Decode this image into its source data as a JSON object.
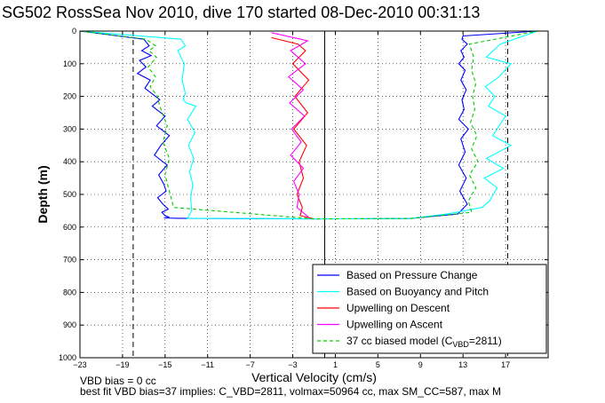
{
  "title": "SG502 RossSea Nov 2010, dive 170 started 08-Dec-2010 00:31:13",
  "footer": {
    "line1": "VBD bias = 0 cc",
    "line2": "best fit VBD bias=37 implies: C_VBD=2811, volmax=50964 cc, max SM_CC=587, max M"
  },
  "chart_data": {
    "type": "line",
    "xlabel": "Vertical Velocity (cm/s)",
    "ylabel": "Depth (m)",
    "xlim": [
      -23,
      21
    ],
    "ylim": [
      0,
      1000
    ],
    "y_reversed": true,
    "grid": true,
    "x_ticks": [
      -23,
      -19,
      -15,
      -11,
      -7,
      -3,
      1,
      5,
      9,
      13,
      17
    ],
    "y_ticks": [
      0,
      100,
      200,
      300,
      400,
      500,
      600,
      700,
      800,
      900,
      1000
    ],
    "legend_position": "bottom-right",
    "reference_lines": [
      {
        "x": 0,
        "color": "#000000",
        "style": "solid"
      },
      {
        "x": -18,
        "color": "#000000",
        "style": "dashed"
      },
      {
        "x": 17.2,
        "color": "#000000",
        "style": "dashed"
      }
    ],
    "series": [
      {
        "name": "Based on Pressure Change",
        "color": "#0000ff",
        "style": "solid",
        "x": [
          -23,
          -17,
          -16.5,
          -17.2,
          -16.3,
          -17.4,
          -16.8,
          -17.6,
          -16.4,
          -16.9,
          -15.5,
          -16.2,
          -15,
          -15.8,
          -14.6,
          -15.4,
          -16,
          -14.8,
          -15.6,
          -15.1,
          -14.9,
          -15.7,
          -15.2,
          -14.7,
          -15.3,
          -15,
          -14.6,
          -15.1,
          -13.8,
          -1,
          8,
          12.5,
          13.4,
          12.7,
          13.3,
          12.6,
          13.2,
          12.8,
          13.5,
          12.6,
          13.1,
          12.9,
          13.3,
          12.8,
          13.2,
          12.6,
          13.1,
          12.8,
          13.4,
          12.9,
          13,
          20
        ],
        "y": [
          0,
          25,
          45,
          60,
          75,
          90,
          110,
          130,
          150,
          175,
          210,
          230,
          260,
          290,
          320,
          350,
          380,
          410,
          440,
          470,
          490,
          510,
          530,
          545,
          555,
          565,
          570,
          572,
          573,
          575,
          574,
          560,
          530,
          490,
          450,
          410,
          370,
          330,
          300,
          270,
          240,
          210,
          180,
          150,
          120,
          100,
          80,
          60,
          40,
          25,
          15,
          0
        ]
      },
      {
        "name": "Based on Buoyancy and Pitch",
        "color": "#00ffff",
        "style": "solid",
        "x": [
          -23,
          -13.5,
          -13.1,
          -13.8,
          -13.2,
          -13.4,
          -13.1,
          -13.3,
          -13,
          -12.1,
          -12.9,
          -12.2,
          -12.8,
          -12.3,
          -12.7,
          -12.4,
          -12.6,
          -12.5,
          -12.9,
          -1,
          8,
          11.5,
          14.8,
          15.5,
          16.2,
          15,
          16.8,
          15.2,
          17.5,
          15.8,
          16.4,
          17,
          15.4,
          16,
          15.1,
          16.4,
          17.5,
          15.2,
          16.5,
          20
        ],
        "y": [
          0,
          25,
          45,
          60,
          100,
          150,
          190,
          210,
          220,
          230,
          270,
          310,
          350,
          390,
          430,
          470,
          510,
          550,
          573,
          575,
          574,
          560,
          540,
          520,
          480,
          450,
          420,
          390,
          350,
          320,
          290,
          260,
          230,
          200,
          170,
          140,
          100,
          80,
          40,
          0
        ]
      },
      {
        "name": "Upwelling on Descent",
        "color": "#ff0000",
        "style": "solid",
        "x": [
          -5,
          -2.5,
          -1.8,
          -3,
          -1.5,
          -2.8,
          -1.6,
          -2.9,
          -1.7,
          -2.4,
          -2,
          -2.6,
          -2.1,
          -2.3,
          -1
        ],
        "y": [
          20,
          40,
          60,
          100,
          150,
          200,
          250,
          300,
          350,
          400,
          450,
          500,
          540,
          565,
          575
        ]
      },
      {
        "name": "Upwelling on Ascent",
        "color": "#ff00ff",
        "style": "solid",
        "x": [
          -5,
          -1.6,
          -3.2,
          -1.8,
          -3.4,
          -2,
          -3.3,
          -1.9,
          -3.1,
          -2.2,
          -3.2,
          -2,
          -2.9,
          -2.4,
          -2.6,
          -1.5
        ],
        "y": [
          5,
          30,
          60,
          100,
          140,
          180,
          220,
          260,
          300,
          340,
          380,
          420,
          460,
          500,
          540,
          570
        ]
      },
      {
        "name": "37 cc biased model (C_VBD=2811)",
        "color": "#00cc00",
        "style": "dashed",
        "x": [
          -23,
          -16.8,
          -15.9,
          -16.5,
          -15.8,
          -16.6,
          -15.9,
          -16.4,
          -15.7,
          -15.5,
          -14.8,
          -15.2,
          -14.6,
          -15,
          -14.6,
          -14.2,
          -1,
          8,
          13.8,
          13.5,
          14.2,
          13.6,
          14.4,
          13.8,
          14.3,
          13.7,
          14.1,
          13.9,
          14.2,
          13.8,
          14,
          13.6,
          20
        ],
        "y": [
          0,
          25,
          45,
          60,
          80,
          110,
          140,
          170,
          200,
          230,
          290,
          340,
          390,
          440,
          490,
          540,
          575,
          574,
          555,
          520,
          480,
          440,
          400,
          360,
          320,
          280,
          240,
          200,
          160,
          120,
          80,
          40,
          0
        ]
      }
    ]
  }
}
